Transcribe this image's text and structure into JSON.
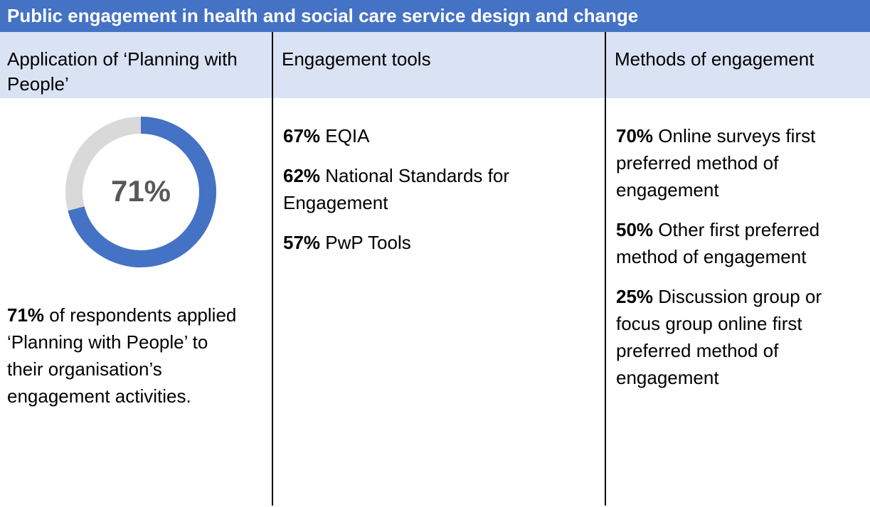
{
  "title": "Public engagement in health and social care service design and change",
  "columns": [
    {
      "heading": "Application of ‘Planning with People’",
      "donut": {
        "value": 71,
        "label": "71%"
      },
      "items": [
        {
          "bold": "71%",
          "text": "of respondents applied ‘Planning with People’ to their organisation’s engagement activities."
        }
      ]
    },
    {
      "heading": "Engagement tools",
      "items": [
        {
          "bold": "67%",
          "text": "EQIA"
        },
        {
          "bold": "62%",
          "text": "National Standards for Engagement"
        },
        {
          "bold": "57%",
          "text": "PwP Tools"
        }
      ]
    },
    {
      "heading": "Methods of engagement",
      "items": [
        {
          "bold": "70%",
          "text": "Online surveys first preferred method of engagement"
        },
        {
          "bold": "50%",
          "text": "Other first preferred method of engagement"
        },
        {
          "bold": "25%",
          "text": "Discussion group or focus group online first preferred method of engagement"
        }
      ]
    }
  ]
}
